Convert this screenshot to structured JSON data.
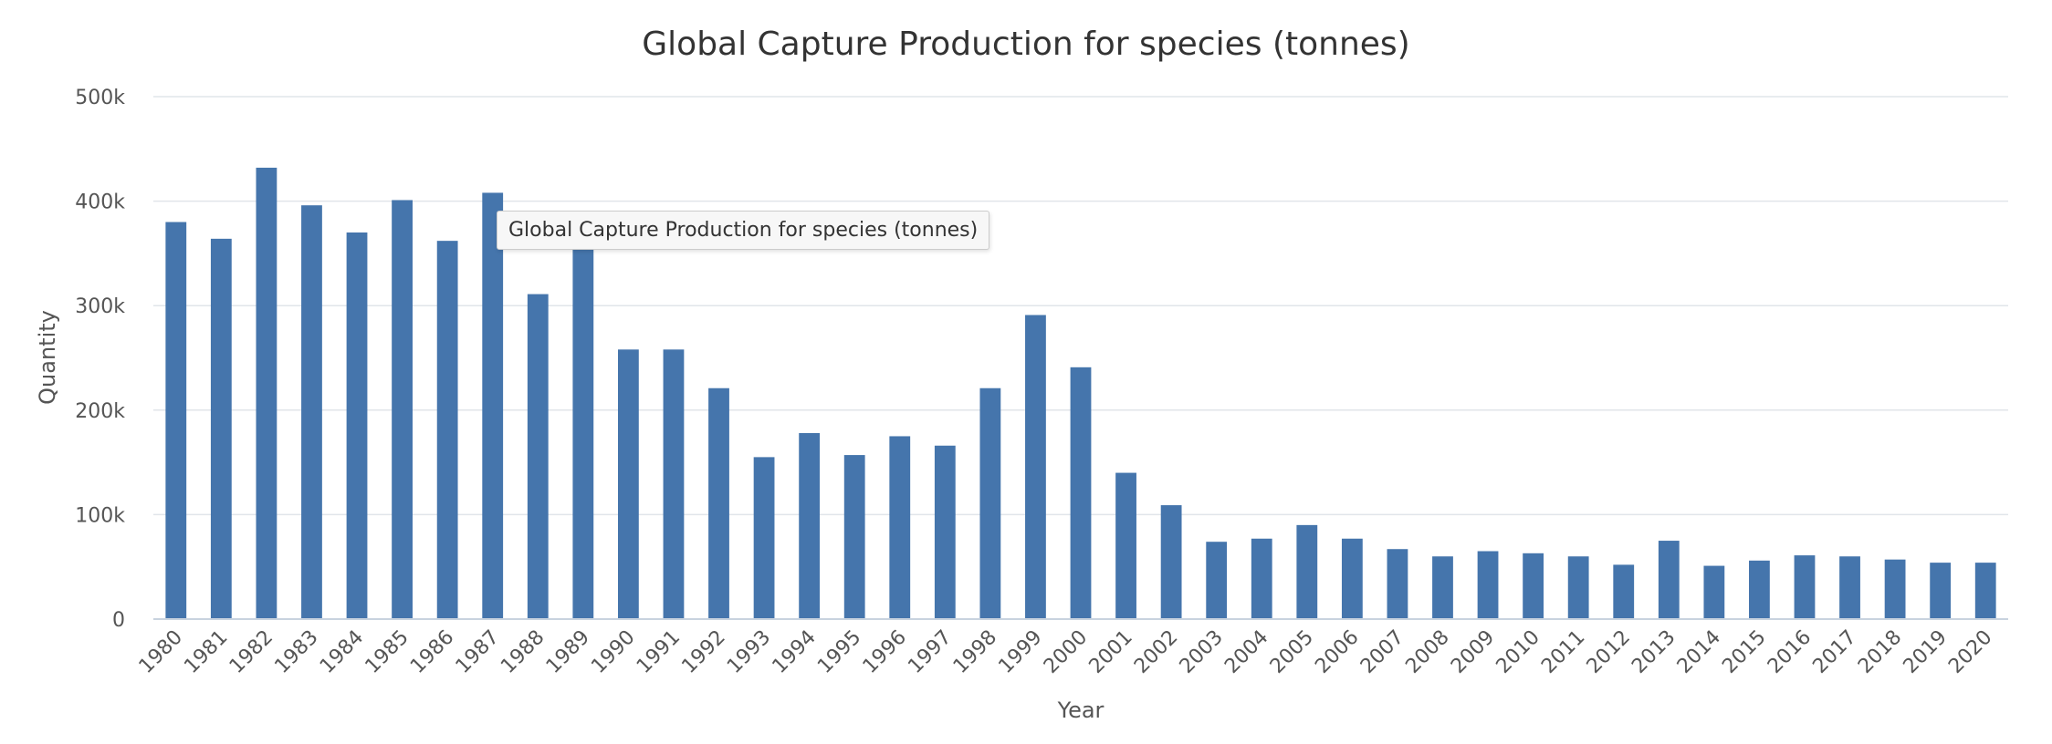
{
  "chart_data": {
    "type": "bar",
    "title": "Global Capture Production for species (tonnes)",
    "xlabel": "Year",
    "ylabel": "Quantity",
    "ylim": [
      0,
      500000
    ],
    "yticks": [
      "0",
      "100k",
      "200k",
      "300k",
      "400k",
      "500k"
    ],
    "ytick_values": [
      0,
      100000,
      200000,
      300000,
      400000,
      500000
    ],
    "grid": true,
    "legend": "none",
    "bar_color": "#4575ac",
    "categories": [
      "1980",
      "1981",
      "1982",
      "1983",
      "1984",
      "1985",
      "1986",
      "1987",
      "1988",
      "1989",
      "1990",
      "1991",
      "1992",
      "1993",
      "1994",
      "1995",
      "1996",
      "1997",
      "1998",
      "1999",
      "2000",
      "2001",
      "2002",
      "2003",
      "2004",
      "2005",
      "2006",
      "2007",
      "2008",
      "2009",
      "2010",
      "2011",
      "2012",
      "2013",
      "2014",
      "2015",
      "2016",
      "2017",
      "2018",
      "2019",
      "2020"
    ],
    "values": [
      380000,
      364000,
      432000,
      396000,
      370000,
      401000,
      362000,
      408000,
      311000,
      359000,
      258000,
      258000,
      221000,
      155000,
      178000,
      157000,
      175000,
      166000,
      221000,
      291000,
      241000,
      140000,
      109000,
      74000,
      77000,
      90000,
      77000,
      67000,
      60000,
      65000,
      63000,
      60000,
      52000,
      75000,
      51000,
      56000,
      61000,
      60000,
      57000,
      54000,
      54000
    ]
  },
  "tooltip": {
    "text": "Global Capture Production for species (tonnes)"
  }
}
